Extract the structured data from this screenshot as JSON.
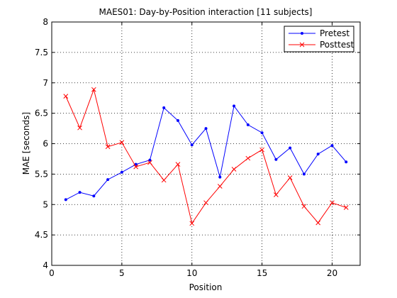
{
  "chart_data": {
    "type": "line",
    "title": "MAES01: Day-by-Position interaction  [11 subjects]",
    "xlabel": "Position",
    "ylabel": "MAE [seconds]",
    "xlim": [
      0,
      22
    ],
    "ylim": [
      4,
      8
    ],
    "xticks": [
      0,
      5,
      10,
      15,
      20
    ],
    "xtick_labels": [
      "0",
      "5",
      "10",
      "15",
      "20"
    ],
    "yticks": [
      4,
      4.5,
      5,
      5.5,
      6,
      6.5,
      7,
      7.5,
      8
    ],
    "ytick_labels": [
      "4",
      "4.5",
      "5",
      "5.5",
      "6",
      "6.5",
      "7",
      "7.5",
      "8"
    ],
    "grid": true,
    "legend_position": "top-right",
    "x": [
      1,
      2,
      3,
      4,
      5,
      6,
      7,
      8,
      9,
      10,
      11,
      12,
      13,
      14,
      15,
      16,
      17,
      18,
      19,
      20,
      21
    ],
    "series": [
      {
        "name": "Pretest",
        "color": "#0000ff",
        "marker": "dot",
        "values": [
          5.08,
          5.2,
          5.14,
          5.41,
          5.53,
          5.66,
          5.73,
          6.59,
          6.38,
          5.98,
          6.25,
          5.45,
          6.62,
          6.31,
          6.18,
          5.74,
          5.93,
          5.5,
          5.83,
          5.97,
          5.7
        ]
      },
      {
        "name": "Posttest",
        "color": "#ff0000",
        "marker": "x",
        "values": [
          6.78,
          6.26,
          6.89,
          5.95,
          6.02,
          5.62,
          5.69,
          5.4,
          5.66,
          4.69,
          5.03,
          5.3,
          5.58,
          5.76,
          5.9,
          5.16,
          5.44,
          4.97,
          4.7,
          5.03,
          4.95
        ]
      }
    ]
  }
}
